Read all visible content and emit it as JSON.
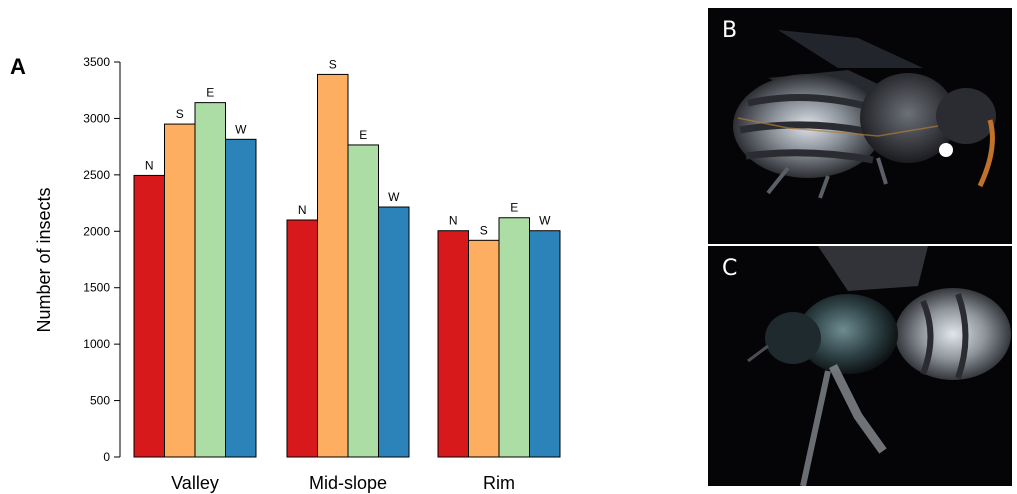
{
  "panel_labels": {
    "a": "A",
    "b": "B",
    "c": "C"
  },
  "chart_data": {
    "type": "bar",
    "ylabel": "Number of insects",
    "xlabel": "",
    "ylim": [
      0,
      3500
    ],
    "yticks": [
      0,
      500,
      1000,
      1500,
      2000,
      2500,
      3000,
      3500
    ],
    "categories": [
      "Valley",
      "Mid-slope",
      "Rim"
    ],
    "series": [
      {
        "name": "N",
        "color": "#d7191c",
        "values": [
          2495,
          2100,
          2005
        ]
      },
      {
        "name": "S",
        "color": "#fdae61",
        "values": [
          2950,
          3390,
          1920
        ]
      },
      {
        "name": "E",
        "color": "#abdda4",
        "values": [
          3140,
          2765,
          2120
        ]
      },
      {
        "name": "W",
        "color": "#2b83ba",
        "values": [
          2815,
          2215,
          2005
        ]
      }
    ],
    "bar_labels": [
      [
        "N",
        "S",
        "E",
        "W"
      ],
      [
        "N",
        "S",
        "E",
        "W"
      ],
      [
        "N",
        "S",
        "E",
        "W"
      ]
    ],
    "grid": false,
    "legend": "none"
  },
  "photos": {
    "b": {
      "subject": "bee-photo-dorsal"
    },
    "c": {
      "subject": "bee-photo-dorsal-blue"
    }
  }
}
